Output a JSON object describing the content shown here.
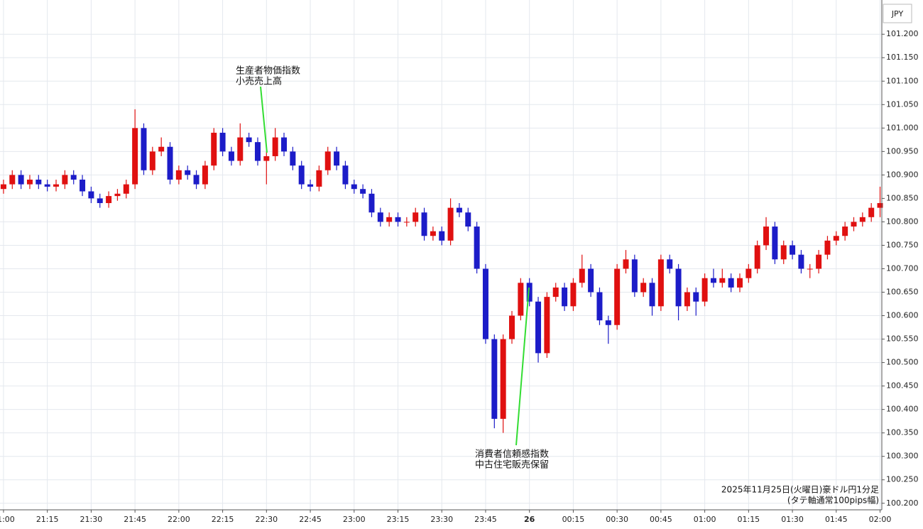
{
  "chart_data": {
    "type": "candlestick",
    "currency": "JPY",
    "annotations": [
      [
        "生産者物価指数",
        "小売売上高"
      ],
      [
        "消費者信頼感指数",
        "中古住宅販売保留"
      ]
    ],
    "notes": [
      "2025年11月25日(火曜日)豪ドル円1分足",
      "(タテ軸通常100pips幅)"
    ],
    "up_color": "#e01010",
    "down_color": "#1c1cc8",
    "grid": true,
    "xlim": [
      -1.2,
      300.6
    ],
    "ylim": [
      100.186,
      101.273
    ],
    "xticks": [
      {
        "value": 0,
        "label": "21:00"
      },
      {
        "value": 15,
        "label": "21:15"
      },
      {
        "value": 30,
        "label": "21:30"
      },
      {
        "value": 45,
        "label": "21:45"
      },
      {
        "value": 60,
        "label": "22:00"
      },
      {
        "value": 75,
        "label": "22:15"
      },
      {
        "value": 90,
        "label": "22:30"
      },
      {
        "value": 105,
        "label": "22:45"
      },
      {
        "value": 120,
        "label": "23:00"
      },
      {
        "value": 135,
        "label": "23:15"
      },
      {
        "value": 150,
        "label": "23:30"
      },
      {
        "value": 165,
        "label": "23:45"
      },
      {
        "value": 180,
        "label": "26"
      },
      {
        "value": 195,
        "label": "00:15"
      },
      {
        "value": 210,
        "label": "00:30"
      },
      {
        "value": 225,
        "label": "00:45"
      },
      {
        "value": 240,
        "label": "01:00"
      },
      {
        "value": 255,
        "label": "01:15"
      },
      {
        "value": 270,
        "label": "01:30"
      },
      {
        "value": 285,
        "label": "01:45"
      },
      {
        "value": 300,
        "label": "02:00"
      }
    ],
    "yticks": [
      {
        "value": 100.2,
        "label": "100.200"
      },
      {
        "value": 100.25,
        "label": "100.250"
      },
      {
        "value": 100.3,
        "label": "100.300"
      },
      {
        "value": 100.35,
        "label": "100.350"
      },
      {
        "value": 100.4,
        "label": "100.400"
      },
      {
        "value": 100.45,
        "label": "100.450"
      },
      {
        "value": 100.5,
        "label": "100.500"
      },
      {
        "value": 100.55,
        "label": "100.550"
      },
      {
        "value": 100.6,
        "label": "100.600"
      },
      {
        "value": 100.65,
        "label": "100.650"
      },
      {
        "value": 100.7,
        "label": "100.700"
      },
      {
        "value": 100.75,
        "label": "100.750"
      },
      {
        "value": 100.8,
        "label": "100.800"
      },
      {
        "value": 100.85,
        "label": "100.850"
      },
      {
        "value": 100.9,
        "label": "100.900"
      },
      {
        "value": 100.95,
        "label": "100.950"
      },
      {
        "value": 101.0,
        "label": "101.000"
      },
      {
        "value": 101.05,
        "label": "101.050"
      },
      {
        "value": 101.1,
        "label": "101.100"
      },
      {
        "value": 101.15,
        "label": "101.150"
      },
      {
        "value": 101.2,
        "label": "101.200"
      }
    ],
    "x": [
      0,
      3,
      6,
      9,
      12,
      15,
      18,
      21,
      24,
      27,
      30,
      33,
      36,
      39,
      42,
      45,
      48,
      51,
      54,
      57,
      60,
      63,
      66,
      69,
      72,
      75,
      78,
      81,
      84,
      87,
      90,
      93,
      96,
      99,
      102,
      105,
      108,
      111,
      114,
      117,
      120,
      123,
      126,
      129,
      132,
      135,
      138,
      141,
      144,
      147,
      150,
      153,
      156,
      159,
      162,
      165,
      168,
      171,
      174,
      177,
      180,
      183,
      186,
      189,
      192,
      195,
      198,
      201,
      204,
      207,
      210,
      213,
      216,
      219,
      222,
      225,
      228,
      231,
      234,
      237,
      240,
      243,
      246,
      249,
      252,
      255,
      258,
      261,
      264,
      267,
      270,
      273,
      276,
      279,
      282,
      285,
      288,
      291,
      294,
      297,
      300
    ],
    "open": [
      100.87,
      100.88,
      100.9,
      100.88,
      100.89,
      100.88,
      100.875,
      100.88,
      100.9,
      100.89,
      100.865,
      100.85,
      100.84,
      100.855,
      100.86,
      100.88,
      101.0,
      100.91,
      100.95,
      100.96,
      100.89,
      100.91,
      100.9,
      100.88,
      100.92,
      100.99,
      100.95,
      100.93,
      100.98,
      100.97,
      100.93,
      100.94,
      100.98,
      100.95,
      100.92,
      100.88,
      100.875,
      100.91,
      100.95,
      100.92,
      100.88,
      100.87,
      100.86,
      100.82,
      100.8,
      100.81,
      100.8,
      100.8,
      100.82,
      100.77,
      100.78,
      100.76,
      100.83,
      100.82,
      100.79,
      100.7,
      100.55,
      100.38,
      100.55,
      100.6,
      100.67,
      100.63,
      100.52,
      100.64,
      100.66,
      100.62,
      100.67,
      100.7,
      100.65,
      100.59,
      100.58,
      100.7,
      100.72,
      100.65,
      100.67,
      100.62,
      100.72,
      100.7,
      100.62,
      100.65,
      100.63,
      100.68,
      100.67,
      100.68,
      100.66,
      100.68,
      100.7,
      100.75,
      100.79,
      100.72,
      100.75,
      100.73,
      100.7,
      100.7,
      100.73,
      100.76,
      100.77,
      100.79,
      100.8,
      100.81,
      100.83
    ],
    "high": [
      100.89,
      100.91,
      100.91,
      100.9,
      100.9,
      100.89,
      100.89,
      100.91,
      100.91,
      100.9,
      100.875,
      100.86,
      100.865,
      100.87,
      100.89,
      101.04,
      101.01,
      100.96,
      100.98,
      100.97,
      100.92,
      100.92,
      100.91,
      100.93,
      101.0,
      101.0,
      100.96,
      101.01,
      100.99,
      100.98,
      100.95,
      101.0,
      100.99,
      100.96,
      100.93,
      100.89,
      100.92,
      100.96,
      100.96,
      100.93,
      100.89,
      100.88,
      100.87,
      100.83,
      100.82,
      100.82,
      100.81,
      100.83,
      100.83,
      100.79,
      100.79,
      100.85,
      100.84,
      100.83,
      100.8,
      100.71,
      100.56,
      100.56,
      100.61,
      100.68,
      100.68,
      100.64,
      100.65,
      100.67,
      100.67,
      100.68,
      100.73,
      100.71,
      100.66,
      100.6,
      100.71,
      100.74,
      100.73,
      100.68,
      100.68,
      100.73,
      100.73,
      100.71,
      100.66,
      100.66,
      100.69,
      100.7,
      100.7,
      100.69,
      100.69,
      100.71,
      100.76,
      100.81,
      100.8,
      100.76,
      100.76,
      100.74,
      100.71,
      100.74,
      100.77,
      100.78,
      100.8,
      100.81,
      100.82,
      100.84,
      100.875
    ],
    "low": [
      100.86,
      100.87,
      100.87,
      100.87,
      100.87,
      100.865,
      100.865,
      100.87,
      100.88,
      100.855,
      100.84,
      100.83,
      100.83,
      100.845,
      100.85,
      100.87,
      100.9,
      100.9,
      100.94,
      100.88,
      100.88,
      100.89,
      100.87,
      100.87,
      100.91,
      100.94,
      100.92,
      100.92,
      100.96,
      100.92,
      100.88,
      100.93,
      100.94,
      100.91,
      100.87,
      100.865,
      100.865,
      100.9,
      100.91,
      100.87,
      100.86,
      100.85,
      100.81,
      100.79,
      100.79,
      100.79,
      100.79,
      100.79,
      100.76,
      100.76,
      100.75,
      100.75,
      100.81,
      100.78,
      100.69,
      100.54,
      100.36,
      100.35,
      100.54,
      100.59,
      100.62,
      100.5,
      100.51,
      100.63,
      100.61,
      100.61,
      100.66,
      100.64,
      100.58,
      100.54,
      100.57,
      100.69,
      100.64,
      100.64,
      100.6,
      100.61,
      100.69,
      100.59,
      100.61,
      100.6,
      100.62,
      100.66,
      100.66,
      100.65,
      100.65,
      100.67,
      100.69,
      100.74,
      100.71,
      100.71,
      100.72,
      100.69,
      100.68,
      100.69,
      100.72,
      100.75,
      100.76,
      100.78,
      100.79,
      100.8,
      100.81
    ],
    "close": [
      100.88,
      100.9,
      100.88,
      100.89,
      100.88,
      100.875,
      100.88,
      100.9,
      100.89,
      100.865,
      100.85,
      100.84,
      100.855,
      100.86,
      100.88,
      101.0,
      100.91,
      100.95,
      100.96,
      100.89,
      100.91,
      100.9,
      100.88,
      100.92,
      100.99,
      100.95,
      100.93,
      100.98,
      100.97,
      100.93,
      100.94,
      100.98,
      100.95,
      100.92,
      100.88,
      100.875,
      100.91,
      100.95,
      100.92,
      100.88,
      100.87,
      100.86,
      100.82,
      100.8,
      100.81,
      100.8,
      100.8,
      100.82,
      100.77,
      100.78,
      100.76,
      100.83,
      100.82,
      100.79,
      100.7,
      100.55,
      100.38,
      100.55,
      100.6,
      100.67,
      100.63,
      100.52,
      100.64,
      100.66,
      100.62,
      100.67,
      100.7,
      100.65,
      100.59,
      100.58,
      100.7,
      100.72,
      100.65,
      100.67,
      100.62,
      100.72,
      100.7,
      100.62,
      100.65,
      100.63,
      100.68,
      100.67,
      100.68,
      100.66,
      100.68,
      100.7,
      100.75,
      100.79,
      100.72,
      100.75,
      100.73,
      100.7,
      100.7,
      100.73,
      100.76,
      100.77,
      100.79,
      100.8,
      100.81,
      100.83,
      100.84
    ]
  }
}
